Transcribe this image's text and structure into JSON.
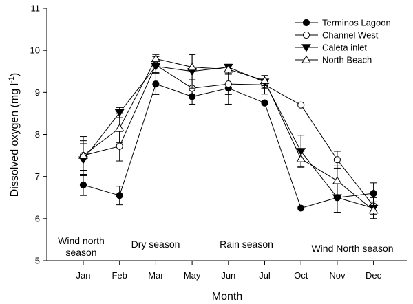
{
  "chart_data": {
    "type": "line",
    "title": "",
    "xlabel": "Month",
    "ylabel_main": "Dissolved oxygen (mg l",
    "ylabel_sup": "-1",
    "ylabel_close": ")",
    "ylim": [
      5,
      11
    ],
    "yticks": [
      5,
      6,
      7,
      8,
      9,
      10,
      11
    ],
    "categories": [
      "Jan",
      "Feb",
      "Mar",
      "May",
      "Jun",
      "Jul",
      "Oct",
      "Nov",
      "Dec"
    ],
    "legend_position": "top-right",
    "grid": false,
    "series": [
      {
        "name": "Terminos Lagoon",
        "marker": "filled-circle",
        "values": [
          6.8,
          6.55,
          9.2,
          8.9,
          9.1,
          8.75,
          6.25,
          6.5,
          6.6
        ],
        "errors": [
          0.25,
          0.22,
          0.25,
          0.18,
          0.38,
          0.0,
          0.0,
          0.35,
          0.25
        ]
      },
      {
        "name": "Channel West",
        "marker": "open-circle",
        "values": [
          7.5,
          7.72,
          9.65,
          9.1,
          9.2,
          9.18,
          8.7,
          7.4,
          6.3
        ],
        "errors": [
          0.45,
          0.35,
          0.2,
          0.2,
          0.25,
          0.22,
          0.0,
          0.2,
          0.2
        ]
      },
      {
        "name": "Caleta inlet",
        "marker": "filled-triangle-down",
        "values": [
          7.4,
          8.52,
          9.62,
          9.5,
          9.6,
          9.25,
          7.6,
          6.5,
          6.25
        ],
        "errors": [
          0.38,
          0.12,
          0.15,
          0.4,
          0.05,
          0.15,
          0.38,
          0.35,
          0.25
        ]
      },
      {
        "name": "North Beach",
        "marker": "open-triangle-up",
        "values": [
          7.5,
          8.15,
          9.8,
          9.6,
          9.55,
          9.28,
          7.42,
          6.9,
          6.2
        ],
        "errors": [
          0.35,
          0.35,
          0.1,
          0.3,
          0.12,
          0.12,
          0.18,
          0.35,
          0.2
        ]
      }
    ],
    "annotations": [
      {
        "lines": [
          "Wind north",
          "season"
        ]
      },
      {
        "lines": [
          "Dry season"
        ]
      },
      {
        "lines": [
          "Rain season"
        ]
      },
      {
        "lines": [
          "Wind North season"
        ]
      }
    ]
  }
}
